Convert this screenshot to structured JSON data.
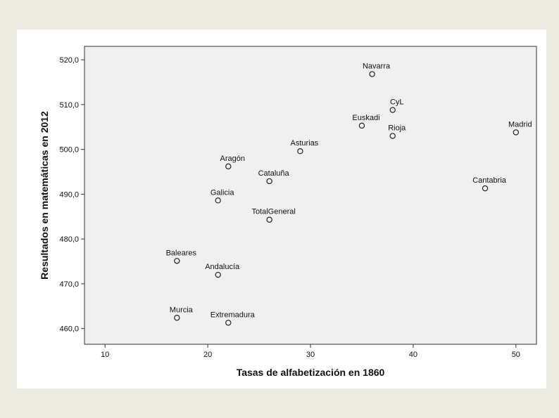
{
  "chart_data": {
    "type": "scatter",
    "xlabel": "Tasas de alfabetización en 1860",
    "ylabel": "Resultados en matemáticas en 2012",
    "xlim": [
      8,
      52
    ],
    "ylim": [
      456.5,
      523
    ],
    "xticks": [
      10,
      20,
      30,
      40,
      50
    ],
    "yticks": [
      460,
      470,
      480,
      490,
      500,
      510,
      520
    ],
    "ytick_labels": [
      "460,0",
      "470,0",
      "480,0",
      "490,0",
      "500,0",
      "510,0",
      "520,0"
    ],
    "grid": false,
    "plot_background": "#f0f0f0",
    "marker": "open-circle",
    "points": [
      {
        "label": "Navarra",
        "x": 36,
        "y": 516.8
      },
      {
        "label": "CyL",
        "x": 38,
        "y": 508.8
      },
      {
        "label": "Euskadi",
        "x": 35,
        "y": 505.3
      },
      {
        "label": "Rioja",
        "x": 38,
        "y": 503.0
      },
      {
        "label": "Madrid",
        "x": 50,
        "y": 503.8
      },
      {
        "label": "Asturias",
        "x": 29,
        "y": 499.6
      },
      {
        "label": "Aragón",
        "x": 22,
        "y": 496.2
      },
      {
        "label": "Cataluña",
        "x": 26,
        "y": 492.9
      },
      {
        "label": "Cantabria",
        "x": 47,
        "y": 491.3
      },
      {
        "label": "Galicia",
        "x": 21,
        "y": 488.6
      },
      {
        "label": "TotalGeneral",
        "x": 26,
        "y": 484.3
      },
      {
        "label": "Baleares",
        "x": 17,
        "y": 475.1
      },
      {
        "label": "Andalucía",
        "x": 21,
        "y": 472.0
      },
      {
        "label": "Murcia",
        "x": 17,
        "y": 462.4
      },
      {
        "label": "Extremadura",
        "x": 22,
        "y": 461.3
      }
    ]
  }
}
